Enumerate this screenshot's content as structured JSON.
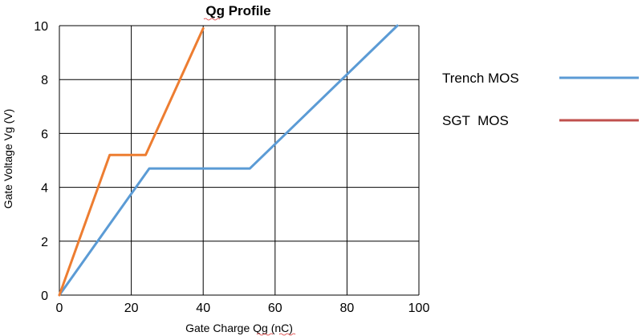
{
  "chart_data": {
    "type": "line",
    "title": "Qg Profile",
    "xlabel": "Gate Charge Qg (nC)",
    "ylabel": "Gate Voltage Vg (V)",
    "xlim": [
      0,
      100
    ],
    "ylim": [
      0,
      10
    ],
    "x_ticks": [
      0,
      20,
      40,
      60,
      80,
      100
    ],
    "y_ticks": [
      0,
      2,
      4,
      6,
      8,
      10
    ],
    "grid": true,
    "legend_position": "right",
    "series": [
      {
        "name": "Trench MOS",
        "legend_color": "#5b9bd5",
        "line_color": "#5b9bd5",
        "points": [
          [
            0,
            0
          ],
          [
            25,
            4.7
          ],
          [
            53,
            4.7
          ],
          [
            94,
            10
          ]
        ]
      },
      {
        "name": "SGT  MOS",
        "legend_color": "#c0504d",
        "line_color": "#ed7d31",
        "points": [
          [
            0,
            0
          ],
          [
            14,
            5.2
          ],
          [
            24,
            5.2
          ],
          [
            40,
            9.9
          ]
        ]
      }
    ]
  }
}
